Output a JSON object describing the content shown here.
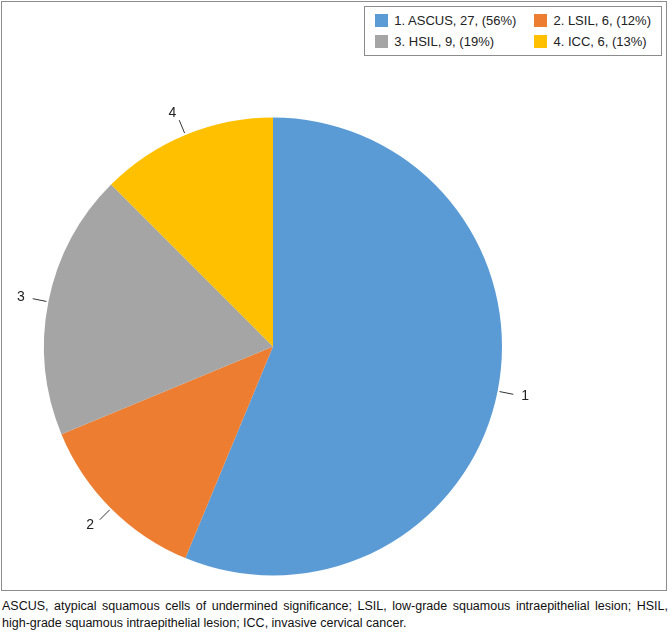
{
  "chart_data": {
    "type": "pie",
    "categories": [
      "1. ASCUS, 27, (56%)",
      "2. LSIL, 6, (12%)",
      "3. HSIL, 9, (19%)",
      "4. ICC, 6, (13%)"
    ],
    "values": [
      27,
      6,
      9,
      6
    ],
    "slice_labels": [
      "1",
      "2",
      "3",
      "4"
    ],
    "colors": [
      "#5B9BD5",
      "#ED7D31",
      "#A5A5A5",
      "#FFC000"
    ],
    "legend": "top-right",
    "note": "ASCUS, atypical squamous cells of undermined significance; LSIL, low-grade squamous intraepithelial lesion; HSIL, high-grade squamous intraepithelial lesion; ICC, invasive cervical cancer."
  }
}
